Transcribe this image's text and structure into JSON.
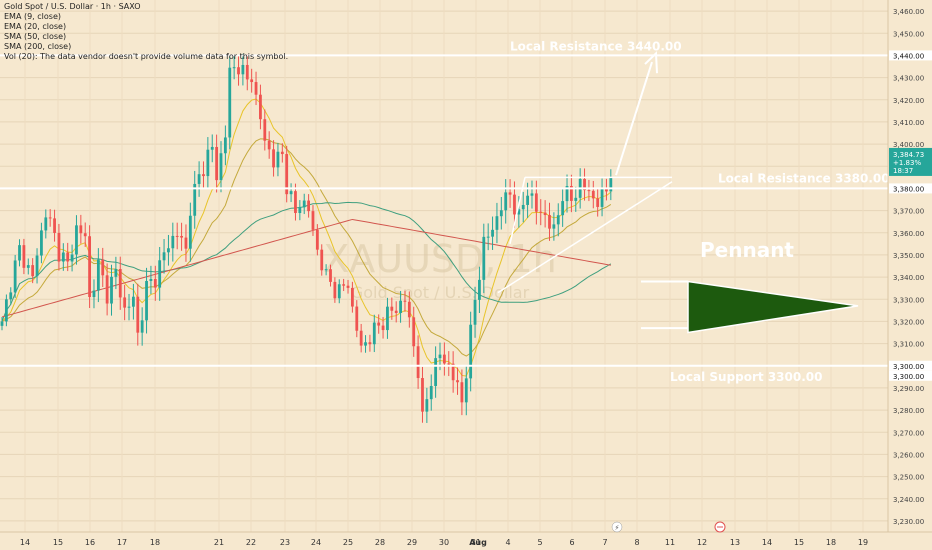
{
  "chart_data": {
    "type": "candlestick",
    "title": "Gold Spot / U.S. Dollar · 1h · SAXO",
    "indicators": [
      "EMA (9, close)",
      "EMA (20, close)",
      "SMA (50, close)",
      "SMA (200, close)",
      "Vol (20): The data vendor doesn't provide volume data for this symbol."
    ],
    "watermark": {
      "symbol": "XAUUSD, 1h",
      "name": "Gold Spot / U.S. Dollar"
    },
    "ylim": [
      3225,
      3465
    ],
    "y_ticks": [
      "3,230.00",
      "3,240.00",
      "3,250.00",
      "3,260.00",
      "3,270.00",
      "3,280.00",
      "3,290.00",
      "3,300.00",
      "3,310.00",
      "3,320.00",
      "3,330.00",
      "3,340.00",
      "3,350.00",
      "3,360.00",
      "3,370.00",
      "3,380.00",
      "3,390.00",
      "3,400.00",
      "3,410.00",
      "3,420.00",
      "3,430.00",
      "3,440.00",
      "3,450.00",
      "3,460.00"
    ],
    "x_ticks": [
      "14",
      "15",
      "16",
      "17",
      "18",
      "21",
      "22",
      "23",
      "24",
      "25",
      "28",
      "29",
      "30",
      "31",
      "Aug",
      "4",
      "5",
      "6",
      "7",
      "8",
      "11",
      "12",
      "13",
      "14",
      "15",
      "18",
      "19"
    ],
    "price_label": {
      "price": "3,384.73",
      "change": "+1.83%",
      "countdown": "18:37",
      "color": "#26a69a"
    },
    "levels": [
      {
        "label": "Local Resistance 3440.00",
        "value": 3440,
        "axis_label": "3,440.00"
      },
      {
        "label": "Local Resistance 3380.00",
        "value": 3380,
        "axis_label": "3,380.00"
      },
      {
        "label": "Local Support 3300.00",
        "value": 3300,
        "axis_label": "3,300.00",
        "axis_label_2": "3,300.00"
      }
    ],
    "pennant_label": "Pennant",
    "colors": {
      "background": "#f6e8cf",
      "up": "#26a69a",
      "down": "#ef5350",
      "ema9": "#e8c42a",
      "ema20": "#c4a93c",
      "sma50": "#3f9f7f",
      "sma200": "#d2564e",
      "pennant_fill": "#1d5a0e",
      "level_line": "#ffffff"
    },
    "price_path": [
      [
        0,
        3318
      ],
      [
        2,
        3338
      ],
      [
        4,
        3352
      ],
      [
        7,
        3340
      ],
      [
        10,
        3370
      ],
      [
        13,
        3352
      ],
      [
        15,
        3345
      ],
      [
        17,
        3362
      ],
      [
        19,
        3358
      ],
      [
        20,
        3330
      ],
      [
        22,
        3345
      ],
      [
        24,
        3333
      ],
      [
        26,
        3342
      ],
      [
        28,
        3325
      ],
      [
        30,
        3330
      ],
      [
        31,
        3314
      ],
      [
        33,
        3335
      ],
      [
        35,
        3340
      ],
      [
        38,
        3355
      ],
      [
        40,
        3360
      ],
      [
        42,
        3352
      ],
      [
        43,
        3372
      ],
      [
        45,
        3385
      ],
      [
        47,
        3395
      ],
      [
        48,
        3398
      ],
      [
        49,
        3385
      ],
      [
        51,
        3405
      ],
      [
        52,
        3432
      ],
      [
        54,
        3436
      ],
      [
        56,
        3428
      ],
      [
        57,
        3432
      ],
      [
        58,
        3420
      ],
      [
        60,
        3402
      ],
      [
        62,
        3392
      ],
      [
        64,
        3395
      ],
      [
        65,
        3382
      ],
      [
        67,
        3368
      ],
      [
        68,
        3375
      ],
      [
        70,
        3370
      ],
      [
        72,
        3352
      ],
      [
        74,
        3340
      ],
      [
        76,
        3335
      ],
      [
        77,
        3333
      ],
      [
        79,
        3338
      ],
      [
        80,
        3325
      ],
      [
        82,
        3308
      ],
      [
        84,
        3313
      ],
      [
        86,
        3318
      ],
      [
        88,
        3323
      ],
      [
        90,
        3326
      ],
      [
        92,
        3330
      ],
      [
        93,
        3320
      ],
      [
        95,
        3298
      ],
      [
        96,
        3275
      ],
      [
        98,
        3295
      ],
      [
        100,
        3305
      ],
      [
        102,
        3300
      ],
      [
        104,
        3290
      ],
      [
        105,
        3284
      ],
      [
        106,
        3298
      ],
      [
        108,
        3330
      ],
      [
        110,
        3355
      ],
      [
        112,
        3362
      ],
      [
        114,
        3372
      ],
      [
        116,
        3378
      ],
      [
        118,
        3366
      ],
      [
        120,
        3380
      ],
      [
        122,
        3370
      ],
      [
        124,
        3368
      ],
      [
        126,
        3360
      ],
      [
        128,
        3378
      ],
      [
        130,
        3375
      ],
      [
        132,
        3382
      ],
      [
        134,
        3378
      ],
      [
        136,
        3374
      ],
      [
        137,
        3376
      ],
      [
        138,
        3380
      ],
      [
        139,
        3384.73
      ]
    ]
  }
}
